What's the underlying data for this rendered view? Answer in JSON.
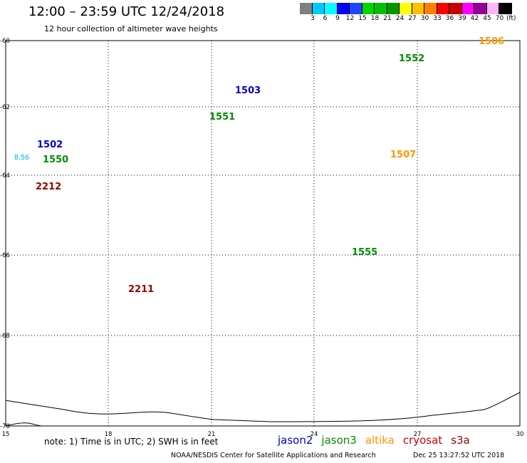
{
  "header": {
    "title": "12:00 – 23:59 UTC 12/24/2018",
    "subtitle": "12 hour collection of altimeter wave heights"
  },
  "colorbar": {
    "colors": [
      "#7f7f7f",
      "#00c8ff",
      "#00ffff",
      "#0000ff",
      "#1e46ff",
      "#00d600",
      "#00c000",
      "#009600",
      "#ffff00",
      "#ffc000",
      "#ff8000",
      "#ff0000",
      "#c80000",
      "#ff00ff",
      "#960096",
      "#ffb4ff",
      "#000000"
    ],
    "ticks": [
      "3",
      "6",
      "9",
      "12",
      "15",
      "18",
      "21",
      "24",
      "27",
      "30",
      "33",
      "36",
      "39",
      "42",
      "45",
      "70"
    ],
    "unit": "(ft)"
  },
  "axes": {
    "lat_labels": [
      "-60",
      "-62",
      "-64",
      "-66",
      "-68",
      "-70"
    ],
    "lon_labels": [
      "15",
      "18",
      "21",
      "24",
      "27",
      "30"
    ]
  },
  "satellites": [
    {
      "name": "jason2",
      "color": "#0000c8"
    },
    {
      "name": "jason3",
      "color": "#008c00"
    },
    {
      "name": "altika",
      "color": "#ff9600"
    },
    {
      "name": "cryosat",
      "color": "#c80000"
    },
    {
      "name": "s3a",
      "color": "#960000"
    }
  ],
  "pass_labels": [
    {
      "id": "1502",
      "sat": "jason2"
    },
    {
      "id": "1503",
      "sat": "jason2"
    },
    {
      "id": "1550",
      "sat": "jason3"
    },
    {
      "id": "1551",
      "sat": "jason3"
    },
    {
      "id": "1552",
      "sat": "jason3"
    },
    {
      "id": "1506",
      "sat": "altika"
    },
    {
      "id": "1507",
      "sat": "altika"
    },
    {
      "id": "2212",
      "sat": "s3a"
    },
    {
      "id": "2211",
      "sat": "s3a"
    },
    {
      "id": "1555",
      "sat": "jason3"
    }
  ],
  "values": {
    "track_a": [
      {
        "v": "8.56",
        "c": "#00aaff"
      },
      {
        "v": "",
        "c": "#0000c8"
      },
      {
        "v": "",
        "c": "#0000c8"
      },
      {
        "v": "",
        "c": "#0000c8"
      },
      {
        "v": "",
        "c": "#0000c8"
      },
      {
        "v": "",
        "c": "#0000c8"
      },
      {
        "v": "",
        "c": "#0000c8"
      },
      {
        "v": "",
        "c": "#0000c8"
      },
      {
        "v": "",
        "c": "#0000c8"
      },
      {
        "v": "",
        "c": "#0000c8"
      },
      {
        "v": "",
        "c": "#0000c8"
      },
      {
        "v": "",
        "c": "#0000c8"
      },
      {
        "v": "",
        "c": "#0000c8"
      },
      {
        "v": "",
        "c": "#0000c8"
      },
      {
        "v": "",
        "c": "#0000c8"
      },
      {
        "v": "",
        "c": "#0000c8"
      },
      {
        "v": "",
        "c": "#0000c8"
      },
      {
        "v": "",
        "c": "#0000c8"
      },
      {
        "v": "",
        "c": "#0000c8"
      },
      {
        "v": "",
        "c": "#0000c8"
      }
    ],
    "track_b": [
      {
        "v": "",
        "c": "#00aaff"
      },
      {
        "v": "",
        "c": "#00aaff"
      },
      {
        "v": "",
        "c": "#0000c8"
      },
      {
        "v": "",
        "c": "#0000c8"
      },
      {
        "v": "",
        "c": "#0000c8"
      },
      {
        "v": "",
        "c": "#0000c8"
      },
      {
        "v": "",
        "c": "#0000c8"
      },
      {
        "v": "",
        "c": "#0000c8"
      },
      {
        "v": "",
        "c": "#0000c8"
      },
      {
        "v": "",
        "c": "#0000c8"
      },
      {
        "v": "",
        "c": "#0000c8"
      },
      {
        "v": "",
        "c": "#0000c8"
      }
    ],
    "track_green": [
      {
        "v": "",
        "c": "#5adc5a"
      },
      {
        "v": "",
        "c": "#5adc5a"
      },
      {
        "v": "",
        "c": "#5adc5a"
      },
      {
        "v": "",
        "c": "#5adc5a"
      },
      {
        "v": "",
        "c": "#5adc5a"
      },
      {
        "v": "",
        "c": "#5adc5a"
      },
      {
        "v": "",
        "c": "#5adc5a"
      },
      {
        "v": "",
        "c": "#5adc5a"
      },
      {
        "v": "",
        "c": "#5adc5a"
      },
      {
        "v": "",
        "c": "#5adc5a"
      },
      {
        "v": "",
        "c": "#5adc5a"
      },
      {
        "v": "",
        "c": "#5adc5a"
      },
      {
        "v": "",
        "c": "#5adc5a"
      },
      {
        "v": "",
        "c": "#5adc5a"
      },
      {
        "v": "",
        "c": "#5adc5a"
      },
      {
        "v": "",
        "c": "#5adc5a"
      }
    ],
    "track_c": [
      {
        "v": "",
        "c": "#0000c8"
      },
      {
        "v": "",
        "c": "#0000c8"
      },
      {
        "v": "",
        "c": "#0000c8"
      },
      {
        "v": "",
        "c": "#0000c8"
      },
      {
        "v": "",
        "c": "#0000c8"
      },
      {
        "v": "",
        "c": "#0000c8"
      },
      {
        "v": "",
        "c": "#0000c8"
      },
      {
        "v": "",
        "c": "#0000c8"
      }
    ],
    "track_d": [
      {
        "v": "",
        "c": "#5adc5a"
      },
      {
        "v": "",
        "c": "#5adc5a"
      },
      {
        "v": "",
        "c": "#5adc5a"
      },
      {
        "v": "",
        "c": "#5adc5a"
      },
      {
        "v": "",
        "c": "#5adc5a"
      },
      {
        "v": "",
        "c": "#5adc5a"
      },
      {
        "v": "",
        "c": "#5adc5a"
      },
      {
        "v": "",
        "c": "#5adc5a"
      },
      {
        "v": "",
        "c": "#5adc5a"
      },
      {
        "v": "",
        "c": "#5adc5a"
      }
    ],
    "track_e": [
      {
        "v": "",
        "c": "#0000c8"
      },
      {
        "v": "",
        "c": "#0000c8"
      },
      {
        "v": "",
        "c": "#0000c8"
      },
      {
        "v": "",
        "c": "#0000c8"
      },
      {
        "v": "",
        "c": "#0000c8"
      },
      {
        "v": "",
        "c": "#0000c8"
      },
      {
        "v": "",
        "c": "#5adc5a"
      },
      {
        "v": "",
        "c": "#5adc5a"
      },
      {
        "v": "",
        "c": "#5adc5a"
      },
      {
        "v": "",
        "c": "#5adc5a"
      }
    ],
    "track_f": [
      {
        "v": "",
        "c": "#5adc5a"
      },
      {
        "v": "",
        "c": "#5adc5a"
      },
      {
        "v": "",
        "c": "#0000c8"
      },
      {
        "v": "",
        "c": "#0000c8"
      },
      {
        "v": "",
        "c": "#0000c8"
      },
      {
        "v": "",
        "c": "#0000c8"
      },
      {
        "v": "",
        "c": "#0000c8"
      },
      {
        "v": "",
        "c": "#0000c8"
      },
      {
        "v": "",
        "c": "#0000c8"
      },
      {
        "v": "",
        "c": "#0000c8"
      },
      {
        "v": "",
        "c": "#5adc5a"
      }
    ],
    "track_s3a": [
      {
        "v": "",
        "c": "#00aaff"
      },
      {
        "v": "",
        "c": "#00aaff"
      },
      {
        "v": "",
        "c": "#00aaff"
      },
      {
        "v": "",
        "c": "#00aaff"
      },
      {
        "v": "",
        "c": "#00aaff"
      },
      {
        "v": "",
        "c": "#00aaff"
      },
      {
        "v": "",
        "c": "#00aaff"
      },
      {
        "v": "",
        "c": "#00aaff"
      },
      {
        "v": "",
        "c": "#00aaff"
      },
      {
        "v": "",
        "c": "#0000c8"
      },
      {
        "v": "",
        "c": "#00aaff"
      },
      {
        "v": "",
        "c": "#00aaff"
      },
      {
        "v": "",
        "c": "#00aaff"
      },
      {
        "v": "",
        "c": "#008c00"
      },
      {
        "v": "",
        "c": "#ff6ec8"
      },
      {
        "v": "",
        "c": "#960000"
      },
      {
        "v": "",
        "c": "#008c00"
      },
      {
        "v": "",
        "c": "#0000c8"
      },
      {
        "v": "",
        "c": "#7f7f7f"
      },
      {
        "v": "",
        "c": "#00aaff"
      }
    ],
    "track_h": [
      {
        "v": "",
        "c": "#00aaff"
      },
      {
        "v": "",
        "c": "#00aaff"
      },
      {
        "v": "",
        "c": "#00aaff"
      },
      {
        "v": "",
        "c": "#00aaff"
      },
      {
        "v": "",
        "c": "#00aaff"
      },
      {
        "v": "",
        "c": "#0000c8"
      },
      {
        "v": "",
        "c": "#0000c8"
      },
      {
        "v": "",
        "c": "#008c00"
      },
      {
        "v": "",
        "c": "#5adc5a"
      }
    ],
    "row66_left": [
      {
        "v": "",
        "c": "#00aaff"
      },
      {
        "v": "",
        "c": "#008c00"
      },
      {
        "v": "",
        "c": "#008c00"
      },
      {
        "v": "",
        "c": "#ff9600"
      },
      {
        "v": "",
        "c": "#00aaff"
      },
      {
        "v": "",
        "c": "#00aaff"
      },
      {
        "v": "",
        "c": "#00aaff"
      },
      {
        "v": "",
        "c": "#0000c8"
      }
    ]
  },
  "footer": {
    "note": "note: 1) Time is in UTC; 2) SWH is in feet",
    "credit": "NOAA/NESDIS Center for Satellite Applications and Research",
    "timestamp": "Dec 25 13:27:52 UTC 2018"
  }
}
